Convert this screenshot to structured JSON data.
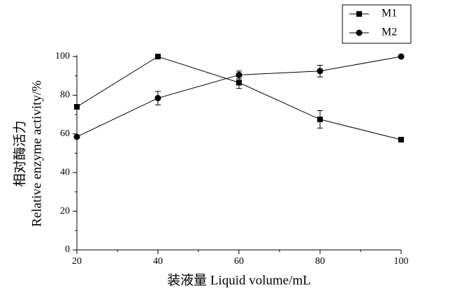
{
  "chart_data": {
    "type": "line",
    "xlabel": "装液量 Liquid volume/mL",
    "ylabel": [
      "相对酶活力",
      "Relative enzyme activity/%"
    ],
    "x": [
      20,
      40,
      60,
      80,
      100
    ],
    "series": [
      {
        "name": "M1",
        "color": "#000000",
        "marker": "square",
        "values": [
          74,
          100,
          86.5,
          67.5,
          57
        ],
        "errors": [
          null,
          null,
          3,
          4.5,
          null
        ]
      },
      {
        "name": "M2",
        "color": "#000000",
        "marker": "circle",
        "values": [
          58.5,
          78.5,
          90.5,
          92.5,
          100
        ],
        "errors": [
          null,
          3.5,
          2,
          3,
          null
        ]
      }
    ],
    "xlim": [
      20,
      100
    ],
    "xticks": [
      20,
      40,
      60,
      80,
      100
    ],
    "ylim": [
      0,
      100
    ],
    "yticks": [
      0,
      20,
      40,
      60,
      80,
      100
    ],
    "legend": "top-right"
  }
}
